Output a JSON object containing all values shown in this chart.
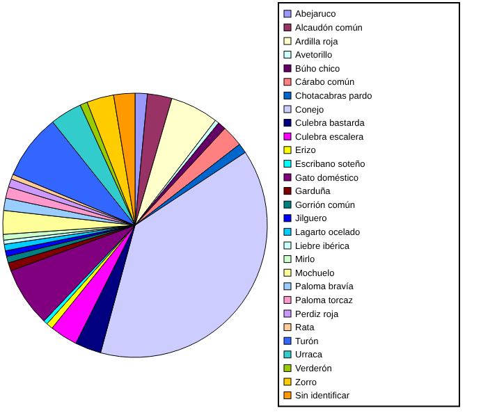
{
  "chart_data": {
    "type": "pie",
    "categories": [
      "Abejaruco",
      "Alcaudón común",
      "Ardilla roja",
      "Avetorillo",
      "Búho chico",
      "Cárabo común",
      "Chotacabras pardo",
      "Conejo",
      "Culebra bastarda",
      "Culebra escalera",
      "Erizo",
      "Escribano soteño",
      "Gato doméstico",
      "Garduña",
      "Gorrión común",
      "Jilguero",
      "Lagarto ocelado",
      "Liebre ibérica",
      "Mirlo",
      "Mochuelo",
      "Paloma bravía",
      "Paloma torcaz",
      "Perdiz roja",
      "Rata",
      "Turón",
      "Urraca",
      "Verderón",
      "Zorro",
      "Sin identificar"
    ],
    "values": [
      1.5,
      3,
      5.9,
      0.5,
      1,
      2.6,
      1.2,
      38.5,
      3.2,
      3.4,
      0.8,
      0.5,
      7.3,
      1,
      0.8,
      0.7,
      0.8,
      0.5,
      0.7,
      2.9,
      1.5,
      1.4,
      1,
      0.6,
      8,
      3.9,
      0.9,
      3.3,
      2.6
    ],
    "colors": [
      "#9999ff",
      "#993366",
      "#ffffcc",
      "#ccffff",
      "#660066",
      "#ff8080",
      "#0066cc",
      "#ccccff",
      "#000080",
      "#ff00ff",
      "#ffff00",
      "#00ffff",
      "#800080",
      "#800000",
      "#008080",
      "#0000ff",
      "#00ccff",
      "#ccffff",
      "#ccffcc",
      "#ffff99",
      "#99ccff",
      "#ff99cc",
      "#cc99ff",
      "#ffcc99",
      "#3366ff",
      "#33cccc",
      "#99cc00",
      "#ffcc00",
      "#ff9900"
    ],
    "legend": "right"
  }
}
